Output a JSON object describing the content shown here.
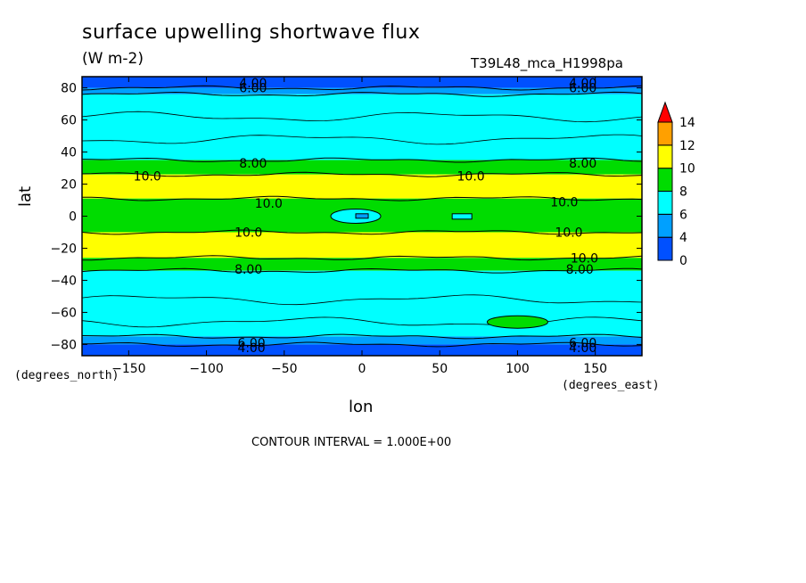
{
  "chart_data": {
    "type": "heatmap",
    "title": "surface upwelling shortwave flux",
    "units": "(W m-2)",
    "run_label": "T39L48_mca_H1998pa",
    "xlabel": "lon",
    "ylabel": "lat",
    "x_unit_label": "(degrees_east)",
    "y_unit_label": "(degrees_north)",
    "xlim": [
      -180,
      180
    ],
    "ylim": [
      -87,
      87
    ],
    "x_ticks": [
      -150,
      -100,
      -50,
      0,
      50,
      100,
      150
    ],
    "y_ticks": [
      80,
      60,
      40,
      20,
      0,
      -20,
      -40,
      -60,
      -80
    ],
    "contour_interval_text": "CONTOUR INTERVAL = 1.000E+00",
    "colorbar": {
      "levels": [
        0,
        2,
        4,
        6,
        8,
        10,
        12,
        14
      ],
      "tick_labels": [
        "0",
        "4",
        "6",
        "8",
        "10",
        "12",
        "14"
      ],
      "colors": [
        "#0050ff",
        "#00a0ff",
        "#00ffff",
        "#00dc00",
        "#ffff00",
        "#ffa000",
        "#ff0000"
      ]
    },
    "latitude_bands": [
      {
        "lat_from": 87,
        "lat_to": 80,
        "value_range": "0-4"
      },
      {
        "lat_from": 80,
        "lat_to": 76,
        "value_range": "4-6"
      },
      {
        "lat_from": 76,
        "lat_to": 35,
        "value_range": "6-8"
      },
      {
        "lat_from": 35,
        "lat_to": 26,
        "value_range": "8-10"
      },
      {
        "lat_from": 26,
        "lat_to": 11,
        "value_range": "10-12"
      },
      {
        "lat_from": 11,
        "lat_to": -10,
        "value_range": "8-10"
      },
      {
        "lat_from": -10,
        "lat_to": -26,
        "value_range": "10-12"
      },
      {
        "lat_from": -26,
        "lat_to": -34,
        "value_range": "8-10"
      },
      {
        "lat_from": -34,
        "lat_to": -75,
        "value_range": "6-8"
      },
      {
        "lat_from": -75,
        "lat_to": -80,
        "value_range": "4-6"
      },
      {
        "lat_from": -80,
        "lat_to": -87,
        "value_range": "0-4"
      }
    ],
    "contour_labels": [
      {
        "text": "4.00",
        "lon": -70,
        "lat": 83
      },
      {
        "text": "6.00",
        "lon": -70,
        "lat": 80
      },
      {
        "text": "4.00",
        "lon": 142,
        "lat": 83
      },
      {
        "text": "6.00",
        "lon": 142,
        "lat": 80
      },
      {
        "text": "8.00",
        "lon": -70,
        "lat": 33
      },
      {
        "text": "8.00",
        "lon": 142,
        "lat": 33
      },
      {
        "text": "10.0",
        "lon": -138,
        "lat": 25
      },
      {
        "text": "10.0",
        "lon": 70,
        "lat": 25
      },
      {
        "text": "10.0",
        "lon": -60,
        "lat": 8
      },
      {
        "text": "10.0",
        "lon": 130,
        "lat": 9
      },
      {
        "text": "10.0",
        "lon": -73,
        "lat": -10
      },
      {
        "text": "10.0",
        "lon": 133,
        "lat": -10
      },
      {
        "text": "10.0",
        "lon": 143,
        "lat": -26
      },
      {
        "text": "8.00",
        "lon": -73,
        "lat": -33
      },
      {
        "text": "8.00",
        "lon": 140,
        "lat": -33
      },
      {
        "text": "6.00",
        "lon": -71,
        "lat": -79
      },
      {
        "text": "4.00",
        "lon": -71,
        "lat": -82
      },
      {
        "text": "6.00",
        "lon": 142,
        "lat": -79
      },
      {
        "text": "4.00",
        "lon": 142,
        "lat": -82
      }
    ]
  }
}
